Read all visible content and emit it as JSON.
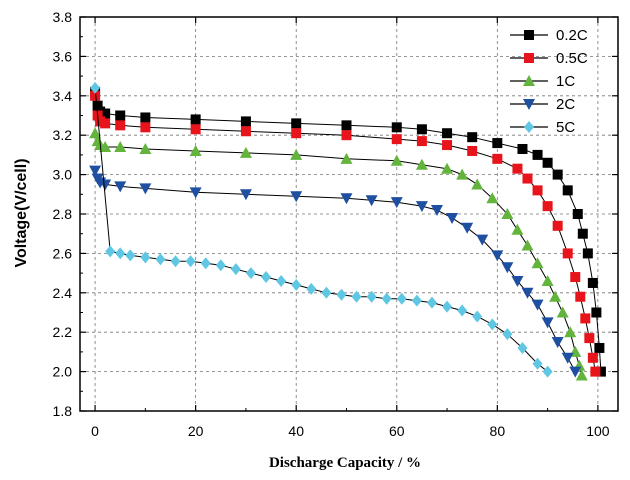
{
  "chart_data": {
    "type": "scatter",
    "title": "",
    "xlabel": "Discharge Capacity / %",
    "ylabel": "Voltage(V/cell)",
    "xlim": [
      -3,
      104
    ],
    "ylim": [
      1.8,
      3.8
    ],
    "xticks": [
      "0",
      "20",
      "40",
      "60",
      "80",
      "100"
    ],
    "yticks": [
      "1.8",
      "2.0",
      "2.2",
      "2.4",
      "2.6",
      "2.8",
      "3.0",
      "3.2",
      "3.4",
      "3.6",
      "3.8"
    ],
    "grid": true,
    "legend_position": "top-right",
    "series": [
      {
        "name": "0.2C",
        "color": "#000000",
        "marker": "square",
        "points": [
          [
            0,
            3.42
          ],
          [
            0.5,
            3.35
          ],
          [
            1,
            3.32
          ],
          [
            2,
            3.31
          ],
          [
            5,
            3.3
          ],
          [
            10,
            3.29
          ],
          [
            20,
            3.28
          ],
          [
            30,
            3.27
          ],
          [
            40,
            3.26
          ],
          [
            50,
            3.25
          ],
          [
            60,
            3.24
          ],
          [
            65,
            3.23
          ],
          [
            70,
            3.21
          ],
          [
            75,
            3.19
          ],
          [
            80,
            3.16
          ],
          [
            85,
            3.13
          ],
          [
            88,
            3.1
          ],
          [
            90,
            3.06
          ],
          [
            92,
            3.0
          ],
          [
            94,
            2.92
          ],
          [
            96,
            2.8
          ],
          [
            97,
            2.7
          ],
          [
            98,
            2.6
          ],
          [
            99,
            2.45
          ],
          [
            99.7,
            2.3
          ],
          [
            100.3,
            2.12
          ],
          [
            100.6,
            2.0
          ]
        ]
      },
      {
        "name": "0.5C",
        "color": "#e8141c",
        "marker": "square",
        "points": [
          [
            0,
            3.4
          ],
          [
            0.5,
            3.3
          ],
          [
            1,
            3.27
          ],
          [
            2,
            3.26
          ],
          [
            5,
            3.25
          ],
          [
            10,
            3.24
          ],
          [
            20,
            3.23
          ],
          [
            30,
            3.22
          ],
          [
            40,
            3.21
          ],
          [
            50,
            3.2
          ],
          [
            60,
            3.18
          ],
          [
            65,
            3.17
          ],
          [
            70,
            3.15
          ],
          [
            75,
            3.12
          ],
          [
            80,
            3.08
          ],
          [
            84,
            3.03
          ],
          [
            86,
            2.98
          ],
          [
            88,
            2.92
          ],
          [
            90,
            2.84
          ],
          [
            92,
            2.74
          ],
          [
            94,
            2.6
          ],
          [
            95.5,
            2.48
          ],
          [
            96.5,
            2.38
          ],
          [
            97.5,
            2.27
          ],
          [
            98.3,
            2.17
          ],
          [
            99,
            2.07
          ],
          [
            99.5,
            2.0
          ]
        ]
      },
      {
        "name": "1C",
        "color": "#63b43c",
        "marker": "triangle-up",
        "points": [
          [
            0,
            3.21
          ],
          [
            0.5,
            3.17
          ],
          [
            1,
            3.15
          ],
          [
            2,
            3.14
          ],
          [
            5,
            3.14
          ],
          [
            10,
            3.13
          ],
          [
            20,
            3.12
          ],
          [
            30,
            3.11
          ],
          [
            40,
            3.1
          ],
          [
            50,
            3.08
          ],
          [
            60,
            3.07
          ],
          [
            65,
            3.05
          ],
          [
            70,
            3.03
          ],
          [
            73,
            3.0
          ],
          [
            76,
            2.95
          ],
          [
            79,
            2.88
          ],
          [
            82,
            2.8
          ],
          [
            84,
            2.72
          ],
          [
            86,
            2.64
          ],
          [
            88,
            2.55
          ],
          [
            90,
            2.46
          ],
          [
            91.5,
            2.38
          ],
          [
            93,
            2.3
          ],
          [
            94.5,
            2.2
          ],
          [
            95.5,
            2.1
          ],
          [
            96.3,
            2.03
          ],
          [
            96.8,
            1.98
          ]
        ]
      },
      {
        "name": "2C",
        "color": "#1f4fa0",
        "marker": "triangle-down",
        "points": [
          [
            0,
            3.02
          ],
          [
            0.5,
            2.98
          ],
          [
            1,
            2.96
          ],
          [
            2,
            2.95
          ],
          [
            5,
            2.94
          ],
          [
            10,
            2.93
          ],
          [
            20,
            2.91
          ],
          [
            30,
            2.9
          ],
          [
            40,
            2.89
          ],
          [
            50,
            2.88
          ],
          [
            55,
            2.87
          ],
          [
            60,
            2.86
          ],
          [
            65,
            2.84
          ],
          [
            68,
            2.82
          ],
          [
            71,
            2.78
          ],
          [
            74,
            2.73
          ],
          [
            77,
            2.67
          ],
          [
            80,
            2.59
          ],
          [
            82,
            2.53
          ],
          [
            84,
            2.46
          ],
          [
            86,
            2.4
          ],
          [
            88,
            2.34
          ],
          [
            90,
            2.25
          ],
          [
            92,
            2.15
          ],
          [
            94,
            2.07
          ],
          [
            95.5,
            2.0
          ]
        ]
      },
      {
        "name": "5C",
        "color": "#5fc7e3",
        "marker": "diamond",
        "points": [
          [
            0,
            3.44
          ],
          [
            3,
            2.61
          ],
          [
            5,
            2.6
          ],
          [
            7,
            2.59
          ],
          [
            10,
            2.58
          ],
          [
            13,
            2.57
          ],
          [
            16,
            2.56
          ],
          [
            19,
            2.56
          ],
          [
            22,
            2.55
          ],
          [
            25,
            2.54
          ],
          [
            28,
            2.52
          ],
          [
            31,
            2.5
          ],
          [
            34,
            2.48
          ],
          [
            37,
            2.46
          ],
          [
            40,
            2.44
          ],
          [
            43,
            2.42
          ],
          [
            46,
            2.4
          ],
          [
            49,
            2.39
          ],
          [
            52,
            2.38
          ],
          [
            55,
            2.38
          ],
          [
            58,
            2.37
          ],
          [
            61,
            2.37
          ],
          [
            64,
            2.36
          ],
          [
            67,
            2.35
          ],
          [
            70,
            2.33
          ],
          [
            73,
            2.31
          ],
          [
            76,
            2.28
          ],
          [
            79,
            2.24
          ],
          [
            82,
            2.19
          ],
          [
            85,
            2.12
          ],
          [
            88,
            2.04
          ],
          [
            90,
            2.0
          ]
        ]
      }
    ]
  }
}
